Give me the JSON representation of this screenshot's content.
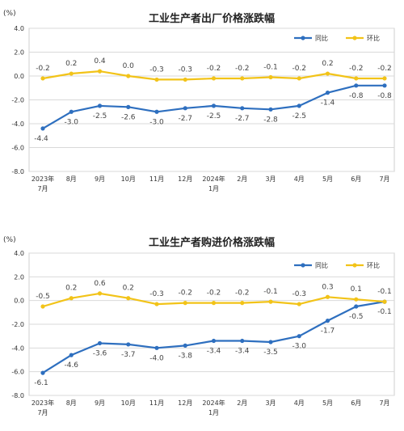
{
  "chart_data": [
    {
      "type": "line",
      "title": "工业生产者出厂价格涨跌幅",
      "unit": "(%)",
      "categories": [
        "2023年\n7月",
        "8月",
        "9月",
        "10月",
        "11月",
        "12月",
        "2024年\n1月",
        "2月",
        "3月",
        "4月",
        "5月",
        "6月",
        "7月"
      ],
      "ylim": [
        -8.0,
        4.0
      ],
      "yticks": [
        "4.0",
        "2.0",
        "0.0",
        "-2.0",
        "-4.0",
        "-6.0",
        "-8.0"
      ],
      "grid": true,
      "legend_position": "top-right",
      "series": [
        {
          "name": "同比",
          "color": "#2e6fbf",
          "values": [
            -4.4,
            -3.0,
            -2.5,
            -2.6,
            -3.0,
            -2.7,
            -2.5,
            -2.7,
            -2.8,
            -2.5,
            -1.4,
            -0.8,
            -0.8
          ],
          "labels": [
            "-4.4",
            "-3.0",
            "-2.5",
            "-2.6",
            "-3.0",
            "-2.7",
            "-2.5",
            "-2.7",
            "-2.8",
            "-2.5",
            "-1.4",
            "-0.8",
            "-0.8"
          ]
        },
        {
          "name": "环比",
          "color": "#f2c318",
          "values": [
            -0.2,
            0.2,
            0.4,
            0.0,
            -0.3,
            -0.3,
            -0.2,
            -0.2,
            -0.1,
            -0.2,
            0.2,
            -0.2,
            -0.2
          ],
          "labels": [
            "-0.2",
            "0.2",
            "0.4",
            "0.0",
            "-0.3",
            "-0.3",
            "-0.2",
            "-0.2",
            "-0.1",
            "-0.2",
            "0.2",
            "-0.2",
            "-0.2"
          ]
        }
      ]
    },
    {
      "type": "line",
      "title": "工业生产者购进价格涨跌幅",
      "unit": "(%)",
      "categories": [
        "2023年\n7月",
        "8月",
        "9月",
        "10月",
        "11月",
        "12月",
        "2024年\n1月",
        "2月",
        "3月",
        "4月",
        "5月",
        "6月",
        "7月"
      ],
      "ylim": [
        -8.0,
        4.0
      ],
      "yticks": [
        "4.0",
        "2.0",
        "0.0",
        "-2.0",
        "-4.0",
        "-6.0",
        "-8.0"
      ],
      "grid": true,
      "legend_position": "top-right",
      "series": [
        {
          "name": "同比",
          "color": "#2e6fbf",
          "values": [
            -6.1,
            -4.6,
            -3.6,
            -3.7,
            -4.0,
            -3.8,
            -3.4,
            -3.4,
            -3.5,
            -3.0,
            -1.7,
            -0.5,
            -0.1
          ],
          "labels": [
            "-6.1",
            "-4.6",
            "-3.6",
            "-3.7",
            "-4.0",
            "-3.8",
            "-3.4",
            "-3.4",
            "-3.5",
            "-3.0",
            "-1.7",
            "-0.5",
            "-0.1"
          ]
        },
        {
          "name": "环比",
          "color": "#f2c318",
          "values": [
            -0.5,
            0.2,
            0.6,
            0.2,
            -0.3,
            -0.2,
            -0.2,
            -0.2,
            -0.1,
            -0.3,
            0.3,
            0.1,
            -0.1
          ],
          "labels": [
            "-0.5",
            "0.2",
            "0.6",
            "0.2",
            "-0.3",
            "-0.2",
            "-0.2",
            "-0.2",
            "-0.1",
            "-0.3",
            "0.3",
            "0.1",
            "-0.1"
          ]
        }
      ]
    }
  ]
}
